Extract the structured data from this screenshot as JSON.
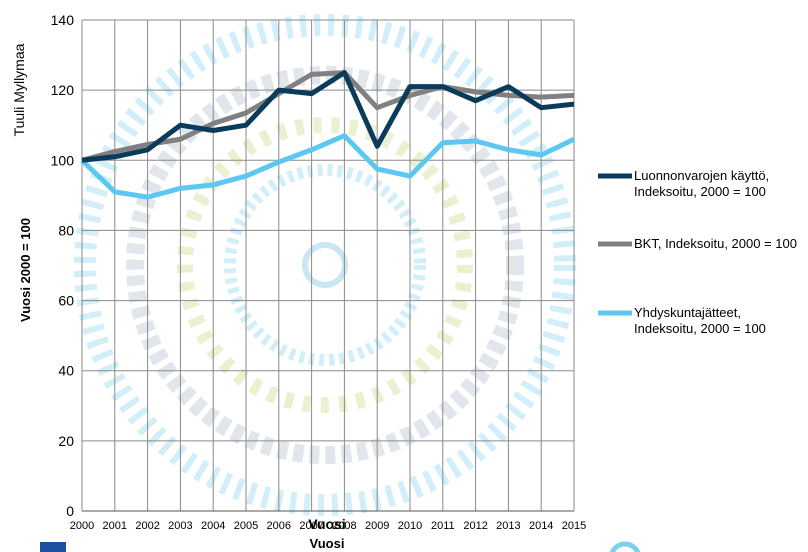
{
  "chart_data": {
    "type": "line",
    "ylabel": "Vuosi 2000 = 100",
    "side_note": "Tuuli Myllymaa",
    "xlabel": "Vuosi",
    "annotations": [
      "Vuosi"
    ],
    "categories": [
      "2000",
      "2001",
      "2002",
      "2003",
      "2004",
      "2005",
      "2006",
      "2007",
      "2008",
      "2009",
      "2010",
      "2011",
      "2012",
      "2013",
      "2014",
      "2015"
    ],
    "series": [
      {
        "name": "Luonnonvarojen käyttö, Indeksoitu, 2000 = 100",
        "color": "#0b3b5a",
        "values": [
          100,
          101,
          103,
          110,
          108.5,
          110,
          120,
          119,
          125,
          104,
          121,
          121,
          117,
          121,
          115,
          116
        ]
      },
      {
        "name": "BKT, Indeksoitu, 2000 = 100",
        "color": "#808080",
        "values": [
          100,
          102.5,
          104.5,
          106,
          110.5,
          113.5,
          119,
          124.5,
          125,
          115,
          118.5,
          121,
          119.5,
          118.5,
          118,
          118.5
        ]
      },
      {
        "name": "Yhdyskuntajätteet, Indeksoitu, 2000 = 100",
        "color": "#5cc8f2",
        "values": [
          100,
          91,
          89.5,
          92,
          93,
          95.5,
          99.5,
          103,
          107,
          97.5,
          95.5,
          105,
          105.5,
          103,
          101.5,
          106
        ]
      }
    ],
    "ylim": [
      0,
      140
    ],
    "yticks": [
      0,
      20,
      40,
      60,
      80,
      100,
      120,
      140
    ],
    "grid": true
  }
}
